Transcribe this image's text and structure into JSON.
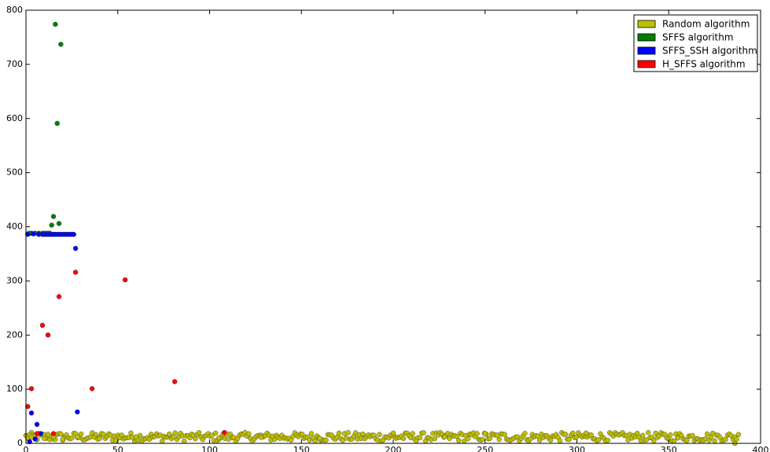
{
  "chart_data": {
    "type": "scatter",
    "title": "",
    "xlabel": "",
    "ylabel": "",
    "xlim": [
      0,
      400
    ],
    "ylim": [
      0,
      800
    ],
    "xticks": [
      0,
      50,
      100,
      150,
      200,
      250,
      300,
      350,
      400
    ],
    "yticks": [
      0,
      100,
      200,
      300,
      400,
      500,
      600,
      700,
      800
    ],
    "grid": false,
    "legend_position": "top-right",
    "series": [
      {
        "name": "Random algorithm",
        "color": "#bfbf00",
        "random_noise": {
          "x_start": 0,
          "x_end": 388,
          "count": 388,
          "y_min": 4,
          "y_max": 20
        },
        "points": [
          [
            0,
            14
          ],
          [
            1,
            10
          ],
          [
            2,
            16
          ],
          [
            3,
            12
          ],
          [
            6,
            8
          ],
          [
            10,
            9
          ],
          [
            15,
            12
          ],
          [
            20,
            8
          ],
          [
            28,
            12
          ],
          [
            40,
            9
          ],
          [
            60,
            12
          ],
          [
            78,
            17
          ],
          [
            105,
            10
          ],
          [
            128,
            11
          ],
          [
            160,
            9
          ],
          [
            200,
            19
          ],
          [
            228,
            12
          ],
          [
            250,
            18
          ],
          [
            305,
            19
          ],
          [
            355,
            10
          ],
          [
            386,
            0
          ]
        ]
      },
      {
        "name": "SFFS algorithm",
        "color": "#007f00",
        "points": [
          [
            1,
            387
          ],
          [
            2,
            388
          ],
          [
            3,
            388
          ],
          [
            5,
            388
          ],
          [
            7,
            388
          ],
          [
            9,
            388
          ],
          [
            10,
            388
          ],
          [
            11,
            388
          ],
          [
            12,
            388
          ],
          [
            13,
            388
          ],
          [
            14,
            403
          ],
          [
            15,
            419
          ],
          [
            16,
            774
          ],
          [
            17,
            591
          ],
          [
            18,
            406
          ],
          [
            19,
            737
          ]
        ]
      },
      {
        "name": "SFFS_SSH algorithm",
        "color": "#0000ff",
        "points": [
          [
            1,
            386
          ],
          [
            2,
            3
          ],
          [
            3,
            56
          ],
          [
            4,
            387
          ],
          [
            5,
            8
          ],
          [
            6,
            35
          ],
          [
            7,
            386
          ],
          [
            8,
            18
          ],
          [
            9,
            386
          ],
          [
            10,
            386
          ],
          [
            11,
            386
          ],
          [
            12,
            386
          ],
          [
            13,
            386
          ],
          [
            14,
            386
          ],
          [
            15,
            386
          ],
          [
            16,
            386
          ],
          [
            17,
            386
          ],
          [
            18,
            386
          ],
          [
            19,
            386
          ],
          [
            20,
            386
          ],
          [
            21,
            386
          ],
          [
            22,
            386
          ],
          [
            23,
            386
          ],
          [
            24,
            386
          ],
          [
            25,
            386
          ],
          [
            26,
            386
          ],
          [
            27,
            360
          ],
          [
            28,
            58
          ]
        ]
      },
      {
        "name": "H_SFFS algorithm",
        "color": "#ff0000",
        "points": [
          [
            1,
            68
          ],
          [
            3,
            101
          ],
          [
            6,
            18
          ],
          [
            9,
            218
          ],
          [
            12,
            200
          ],
          [
            15,
            18
          ],
          [
            18,
            271
          ],
          [
            27,
            316
          ],
          [
            36,
            101
          ],
          [
            54,
            302
          ],
          [
            81,
            114
          ],
          [
            108,
            20
          ]
        ]
      }
    ]
  }
}
